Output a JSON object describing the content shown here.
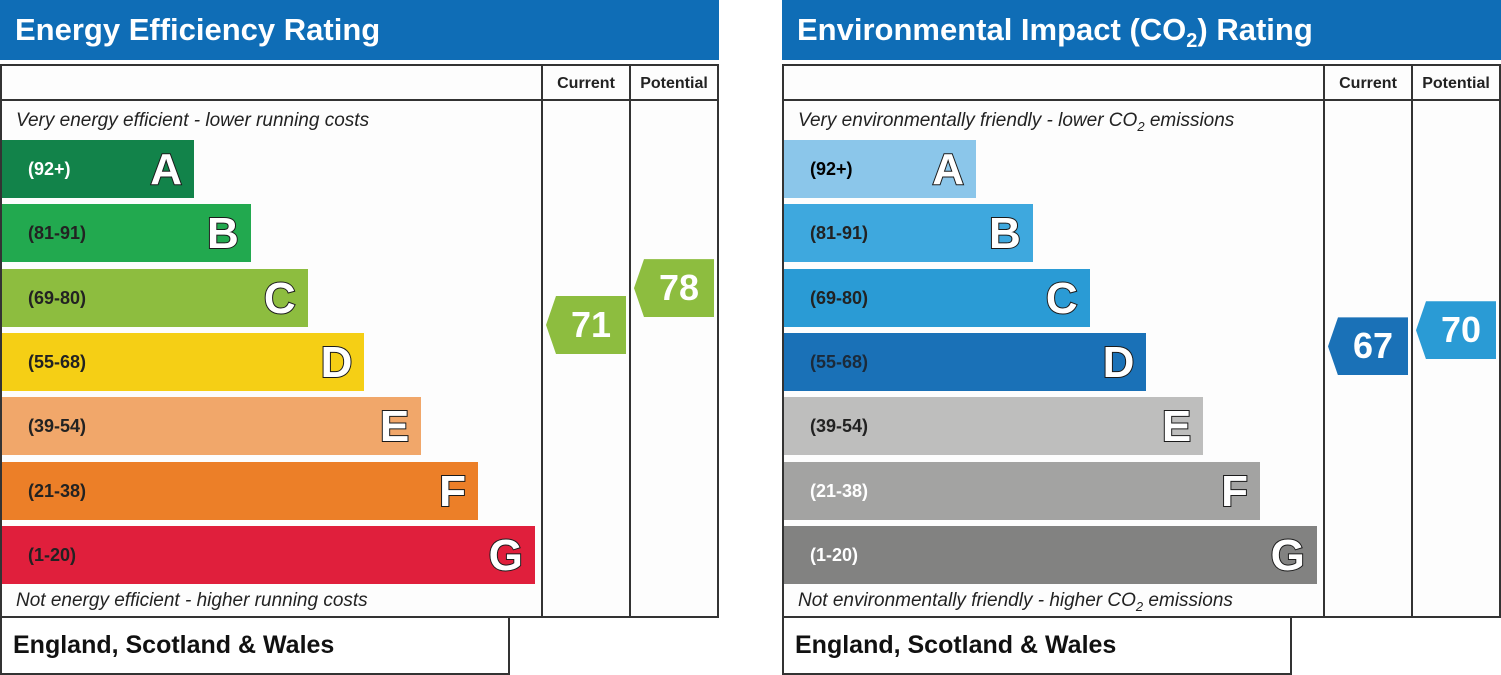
{
  "chart_data": [
    {
      "type": "bar",
      "title": "Energy Efficiency Rating",
      "columns": [
        "Current",
        "Potential"
      ],
      "top_note": "Very energy efficient - lower running costs",
      "bottom_note": "Not energy efficient - higher running costs",
      "bands": [
        {
          "letter": "A",
          "range": "(92+)",
          "color": "#12834a"
        },
        {
          "letter": "B",
          "range": "(81-91)",
          "color": "#22a94f"
        },
        {
          "letter": "C",
          "range": "(69-80)",
          "color": "#8dbd3f"
        },
        {
          "letter": "D",
          "range": "(55-68)",
          "color": "#f5cf15"
        },
        {
          "letter": "E",
          "range": "(39-54)",
          "color": "#f1a76a"
        },
        {
          "letter": "F",
          "range": "(21-38)",
          "color": "#ec7f28"
        },
        {
          "letter": "G",
          "range": "(1-20)",
          "color": "#e01f3c"
        }
      ],
      "current": {
        "value": 71,
        "band": "C",
        "color": "#8dbd3f"
      },
      "potential": {
        "value": 78,
        "band": "C",
        "color": "#8dbd3f"
      },
      "region": "England, Scotland & Wales"
    },
    {
      "type": "bar",
      "title": "Environmental Impact (CO2) Rating",
      "columns": [
        "Current",
        "Potential"
      ],
      "top_note": "Very environmentally friendly - lower CO2 emissions",
      "bottom_note": "Not environmentally friendly - higher CO2 emissions",
      "bands": [
        {
          "letter": "A",
          "range": "(92+)",
          "color": "#8bc6ea"
        },
        {
          "letter": "B",
          "range": "(81-91)",
          "color": "#3ea8de"
        },
        {
          "letter": "C",
          "range": "(69-80)",
          "color": "#2a9bd5"
        },
        {
          "letter": "D",
          "range": "(55-68)",
          "color": "#1a71b7"
        },
        {
          "letter": "E",
          "range": "(39-54)",
          "color": "#bebebd"
        },
        {
          "letter": "F",
          "range": "(21-38)",
          "color": "#a3a3a2"
        },
        {
          "letter": "G",
          "range": "(1-20)",
          "color": "#828281"
        }
      ],
      "current": {
        "value": 67,
        "band": "D",
        "color": "#1a71b7"
      },
      "potential": {
        "value": 70,
        "band": "C",
        "color": "#2a9bd5"
      },
      "region": "England, Scotland & Wales"
    }
  ]
}
